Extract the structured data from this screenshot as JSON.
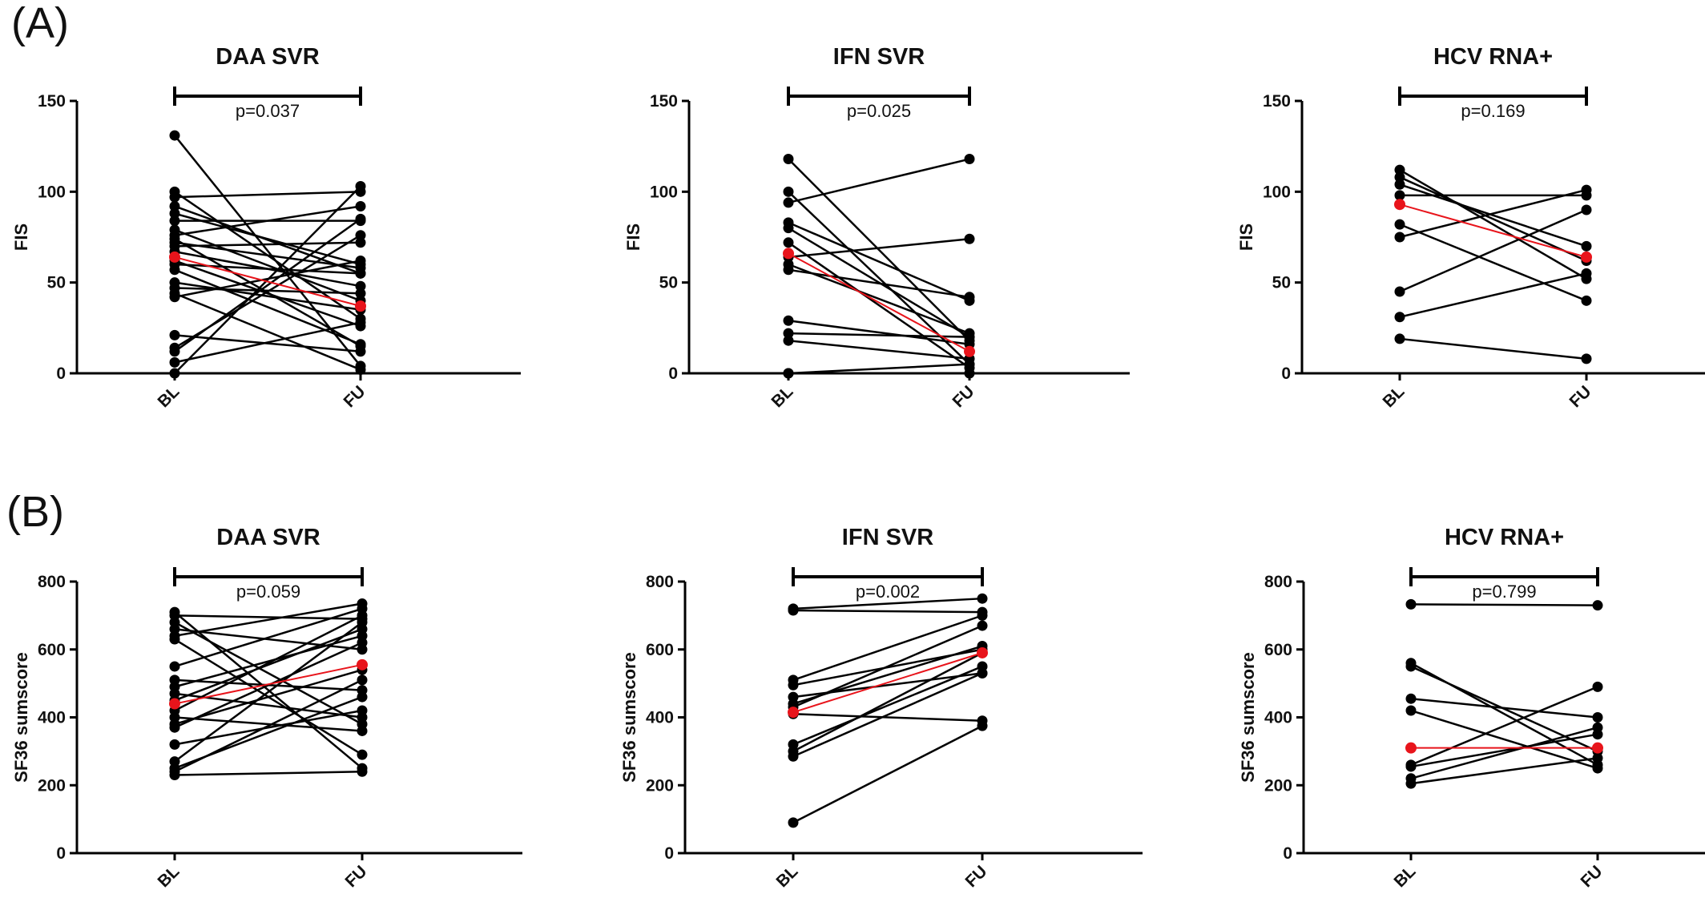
{
  "panels": {
    "a": "(A)",
    "b": "(B)"
  },
  "colors": {
    "subject": "#000000",
    "mean": "#e8141b"
  },
  "chart_data": [
    {
      "type": "line",
      "panel": "(A)",
      "title": "DAA SVR",
      "ylabel": "FIS",
      "categories": [
        "BL",
        "FU"
      ],
      "ylim": [
        0,
        150
      ],
      "yticks": [
        0,
        50,
        100,
        150
      ],
      "p_value": "p=0.037",
      "series": [
        {
          "values": [
            131,
            4
          ]
        },
        {
          "values": [
            100,
            30
          ]
        },
        {
          "values": [
            97,
            100
          ]
        },
        {
          "values": [
            92,
            55
          ]
        },
        {
          "values": [
            88,
            60
          ]
        },
        {
          "values": [
            84,
            84
          ]
        },
        {
          "values": [
            79,
            40
          ]
        },
        {
          "values": [
            76,
            92
          ]
        },
        {
          "values": [
            74,
            15
          ]
        },
        {
          "values": [
            72,
            58
          ]
        },
        {
          "values": [
            70,
            72
          ]
        },
        {
          "values": [
            67,
            48
          ]
        },
        {
          "values": [
            62,
            26
          ]
        },
        {
          "values": [
            60,
            55
          ]
        },
        {
          "values": [
            57,
            16
          ]
        },
        {
          "values": [
            50,
            35
          ]
        },
        {
          "values": [
            47,
            44
          ]
        },
        {
          "values": [
            44,
            2
          ]
        },
        {
          "values": [
            42,
            62
          ]
        },
        {
          "values": [
            21,
            12
          ]
        },
        {
          "values": [
            14,
            76
          ]
        },
        {
          "values": [
            12,
            85
          ]
        },
        {
          "values": [
            6,
            28
          ]
        },
        {
          "values": [
            0,
            103
          ]
        },
        {
          "values": [
            64,
            37
          ],
          "mean": true
        }
      ]
    },
    {
      "type": "line",
      "panel": "(A)",
      "title": "IFN SVR",
      "ylabel": "FIS",
      "categories": [
        "BL",
        "FU"
      ],
      "ylim": [
        0,
        150
      ],
      "yticks": [
        0,
        50,
        100,
        150
      ],
      "p_value": "p=0.025",
      "series": [
        {
          "values": [
            118,
            18
          ]
        },
        {
          "values": [
            100,
            5
          ]
        },
        {
          "values": [
            94,
            118
          ]
        },
        {
          "values": [
            83,
            40
          ]
        },
        {
          "values": [
            80,
            20
          ]
        },
        {
          "values": [
            72,
            3
          ]
        },
        {
          "values": [
            64,
            74
          ]
        },
        {
          "values": [
            60,
            22
          ]
        },
        {
          "values": [
            57,
            42
          ]
        },
        {
          "values": [
            29,
            16
          ]
        },
        {
          "values": [
            22,
            20
          ]
        },
        {
          "values": [
            18,
            8
          ]
        },
        {
          "values": [
            0,
            5
          ]
        },
        {
          "values": [
            0,
            0
          ]
        },
        {
          "values": [
            66,
            12
          ],
          "mean": true
        }
      ]
    },
    {
      "type": "line",
      "panel": "(A)",
      "title": "HCV RNA+",
      "ylabel": "FIS",
      "categories": [
        "BL",
        "FU"
      ],
      "ylim": [
        0,
        150
      ],
      "yticks": [
        0,
        50,
        100,
        150
      ],
      "p_value": "p=0.169",
      "series": [
        {
          "values": [
            112,
            52
          ]
        },
        {
          "values": [
            108,
            62
          ]
        },
        {
          "values": [
            104,
            70
          ]
        },
        {
          "values": [
            98,
            98
          ]
        },
        {
          "values": [
            82,
            40
          ]
        },
        {
          "values": [
            75,
            101
          ]
        },
        {
          "values": [
            45,
            90
          ]
        },
        {
          "values": [
            31,
            55
          ]
        },
        {
          "values": [
            19,
            8
          ]
        },
        {
          "values": [
            93,
            64
          ],
          "mean": true
        }
      ]
    },
    {
      "type": "line",
      "panel": "(B)",
      "title": "DAA SVR",
      "ylabel": "SF36 sumscore",
      "categories": [
        "BL",
        "FU"
      ],
      "ylim": [
        0,
        800
      ],
      "yticks": [
        0,
        200,
        400,
        600,
        800
      ],
      "p_value": "p=0.059",
      "series": [
        {
          "values": [
            710,
            250
          ]
        },
        {
          "values": [
            700,
            690
          ]
        },
        {
          "values": [
            680,
            380
          ]
        },
        {
          "values": [
            660,
            600
          ]
        },
        {
          "values": [
            640,
            735
          ]
        },
        {
          "values": [
            630,
            290
          ]
        },
        {
          "values": [
            550,
            720
          ]
        },
        {
          "values": [
            510,
            480
          ]
        },
        {
          "values": [
            490,
            640
          ]
        },
        {
          "values": [
            470,
            400
          ]
        },
        {
          "values": [
            450,
            660
          ]
        },
        {
          "values": [
            420,
            700
          ]
        },
        {
          "values": [
            400,
            360
          ]
        },
        {
          "values": [
            380,
            540
          ]
        },
        {
          "values": [
            370,
            620
          ]
        },
        {
          "values": [
            320,
            420
          ]
        },
        {
          "values": [
            270,
            680
          ]
        },
        {
          "values": [
            250,
            460
          ]
        },
        {
          "values": [
            240,
            510
          ]
        },
        {
          "values": [
            230,
            240
          ]
        },
        {
          "values": [
            440,
            555
          ],
          "mean": true
        }
      ]
    },
    {
      "type": "line",
      "panel": "(B)",
      "title": "IFN SVR",
      "ylabel": "SF36 sumscore",
      "categories": [
        "BL",
        "FU"
      ],
      "ylim": [
        0,
        800
      ],
      "yticks": [
        0,
        200,
        400,
        600,
        800
      ],
      "p_value": "p=0.002",
      "series": [
        {
          "values": [
            720,
            750
          ]
        },
        {
          "values": [
            715,
            710
          ]
        },
        {
          "values": [
            510,
            700
          ]
        },
        {
          "values": [
            495,
            600
          ]
        },
        {
          "values": [
            460,
            530
          ]
        },
        {
          "values": [
            440,
            610
          ]
        },
        {
          "values": [
            430,
            670
          ]
        },
        {
          "values": [
            410,
            390
          ]
        },
        {
          "values": [
            320,
            550
          ]
        },
        {
          "values": [
            300,
            590
          ]
        },
        {
          "values": [
            285,
            530
          ]
        },
        {
          "values": [
            90,
            375
          ]
        },
        {
          "values": [
            415,
            590
          ],
          "mean": true
        }
      ]
    },
    {
      "type": "line",
      "panel": "(B)",
      "title": "HCV RNA+",
      "ylabel": "SF36 sumscore",
      "categories": [
        "BL",
        "FU"
      ],
      "ylim": [
        0,
        800
      ],
      "yticks": [
        0,
        200,
        400,
        600,
        800
      ],
      "p_value": "p=0.799",
      "series": [
        {
          "values": [
            733,
            730
          ]
        },
        {
          "values": [
            560,
            260
          ]
        },
        {
          "values": [
            550,
            300
          ]
        },
        {
          "values": [
            455,
            400
          ]
        },
        {
          "values": [
            420,
            250
          ]
        },
        {
          "values": [
            260,
            490
          ]
        },
        {
          "values": [
            255,
            350
          ]
        },
        {
          "values": [
            220,
            370
          ]
        },
        {
          "values": [
            205,
            280
          ]
        },
        {
          "values": [
            310,
            310
          ],
          "mean": true
        }
      ]
    }
  ]
}
